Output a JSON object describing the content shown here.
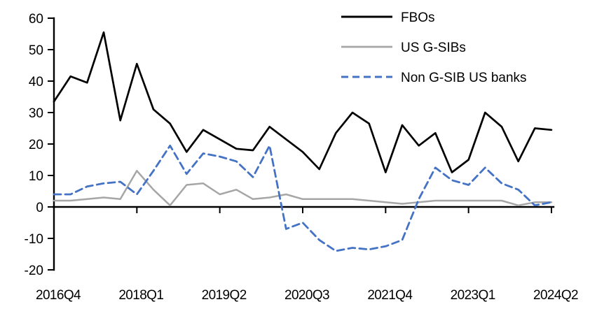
{
  "chart_data": {
    "type": "line",
    "title": "",
    "xlabel": "",
    "ylabel": "",
    "ylim": [
      -20,
      60
    ],
    "yticks": [
      60,
      50,
      40,
      30,
      20,
      10,
      0,
      -10,
      -20
    ],
    "xtick_indices": [
      0,
      5,
      10,
      15,
      20,
      25,
      30
    ],
    "grid": false,
    "legend_position": "top-right",
    "x": [
      "2016Q4",
      "2017Q1",
      "2017Q2",
      "2017Q3",
      "2017Q4",
      "2018Q1",
      "2018Q2",
      "2018Q3",
      "2018Q4",
      "2019Q1",
      "2019Q2",
      "2019Q3",
      "2019Q4",
      "2020Q1",
      "2020Q2",
      "2020Q3",
      "2020Q4",
      "2021Q1",
      "2021Q2",
      "2021Q3",
      "2021Q4",
      "2022Q1",
      "2022Q2",
      "2022Q3",
      "2022Q4",
      "2023Q1",
      "2023Q2",
      "2023Q3",
      "2023Q4",
      "2024Q1",
      "2024Q2"
    ],
    "series": [
      {
        "id": "fbos",
        "name": "FBOs",
        "color": "#000000",
        "dash": null,
        "width": 2.7,
        "values": [
          33.5,
          41.5,
          39.5,
          55.5,
          27.5,
          45.5,
          31,
          26.5,
          17.5,
          24.5,
          21.5,
          18.5,
          18,
          25.5,
          21.5,
          17.5,
          12,
          23.5,
          30,
          26.5,
          11,
          26,
          19.5,
          23.5,
          11,
          15,
          30,
          25.5,
          14.5,
          25,
          24.5
        ]
      },
      {
        "id": "us-gsibs",
        "name": "US G-SIBs",
        "color": "#a6a6a6",
        "dash": null,
        "width": 2.5,
        "values": [
          2,
          2,
          2.5,
          3,
          2.5,
          11.5,
          5.5,
          0.5,
          7,
          7.5,
          4,
          5.5,
          2.5,
          3,
          4,
          2.5,
          2.5,
          2.5,
          2.5,
          2,
          1.5,
          1,
          1.5,
          2,
          2,
          2,
          2,
          2,
          0.5,
          1.5,
          1.5
        ]
      },
      {
        "id": "non-gsib-us-banks",
        "name": "Non G-SIB US banks",
        "color": "#4472c4",
        "dash": "10 6",
        "width": 2.8,
        "values": [
          4,
          4,
          6.5,
          7.5,
          8,
          4,
          11.5,
          19.5,
          10.5,
          17,
          16,
          14.5,
          9.5,
          19.5,
          -7,
          -5,
          -10.5,
          -14,
          -13,
          -13.5,
          -12.5,
          -10.5,
          2.5,
          12.5,
          8.5,
          7,
          12.5,
          7.5,
          5.5,
          0.5,
          1.5
        ]
      }
    ]
  }
}
